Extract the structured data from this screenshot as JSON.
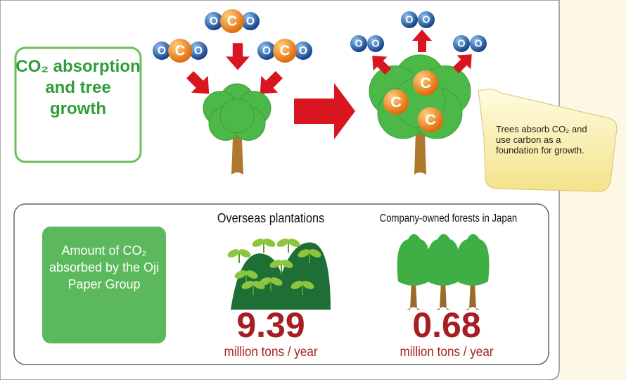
{
  "diagram": {
    "title": "CO₂ absorption and tree growth",
    "atoms": {
      "carbon": "C",
      "oxygen": "O"
    },
    "callout": "Trees absorb CO₂ and use carbon as a foundation for growth."
  },
  "summary": {
    "label": "Amount of CO₂ absorbed by the Oji Paper Group",
    "items": [
      {
        "name": "Overseas plantations",
        "value": 9.39,
        "unit": "million tons / year"
      },
      {
        "name": "Company-owned forests in Japan",
        "value": 0.68,
        "unit": "million tons / year"
      }
    ]
  }
}
